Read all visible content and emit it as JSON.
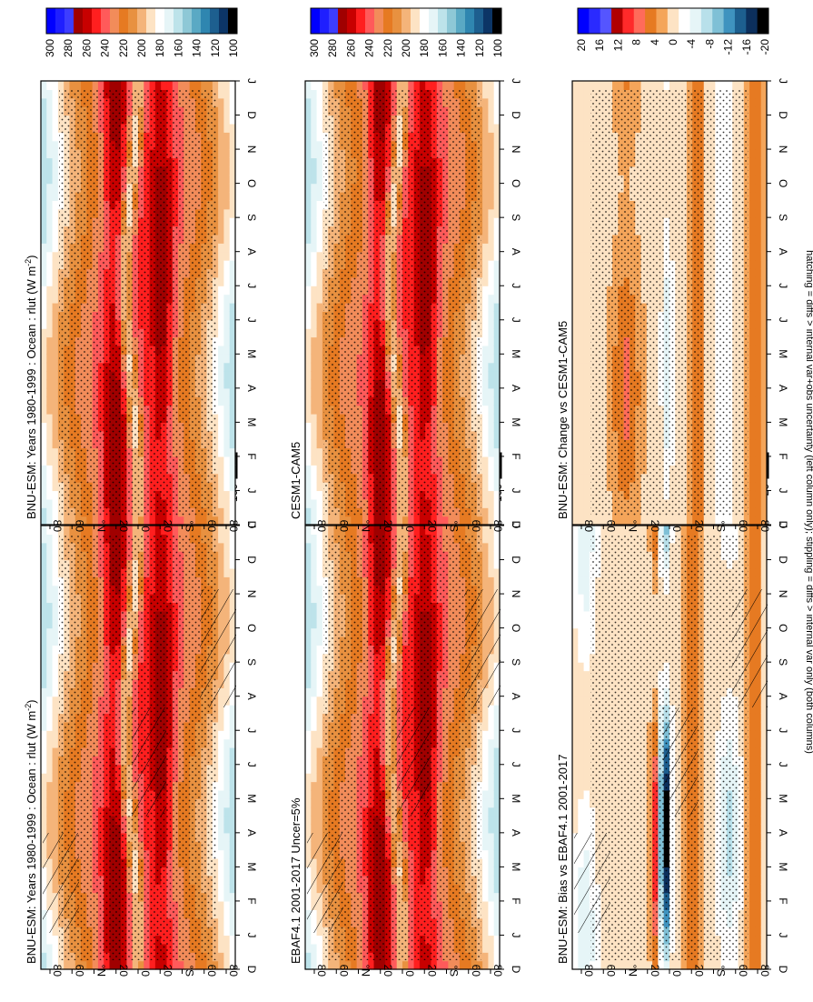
{
  "figure": {
    "caption": "hatching = diffs > internal var+obs uncertainty (left column only); stippling = diffs > internal var only (both columns)"
  },
  "palettes": {
    "abs": [
      "#0000ff",
      "#1f1fff",
      "#3d3dff",
      "#a00000",
      "#c80000",
      "#ff1f1f",
      "#ff5a5a",
      "#f28c5a",
      "#e67a22",
      "#e89140",
      "#f4b47a",
      "#fde3c4",
      "#ffffff",
      "#e6f5f7",
      "#bde3ea",
      "#8ec8d6",
      "#5aa9c4",
      "#2f86b0",
      "#1d5f8f",
      "#0c3566",
      "#000000"
    ],
    "diff": [
      "#0000ff",
      "#2a2aff",
      "#5555ff",
      "#b00000",
      "#ff2a2a",
      "#ff6b5a",
      "#e67a22",
      "#f4a55a",
      "#fde3c4",
      "#ffffff",
      "#e6f5f7",
      "#b8e0ea",
      "#7fc0d6",
      "#3f93bf",
      "#1d5f8f",
      "#0c2f5c",
      "#000000"
    ]
  },
  "chart_data": [
    {
      "type": "heatmap",
      "title": "BNU-ESM: Years 1980-1999 : Ocean : rlut (W m",
      "title_sup": "-2",
      "title_end": ")",
      "x_ticks": [
        "D",
        "J",
        "F",
        "M",
        "A",
        "M",
        "J",
        "J",
        "A",
        "S",
        "O",
        "N",
        "D",
        "J"
      ],
      "y_ticks": [
        "80",
        "60",
        "°N",
        "20",
        "0",
        "20",
        "°S",
        "60",
        "80"
      ],
      "colorbar_ticks": [
        "300",
        "280",
        "260",
        "240",
        "220",
        "200",
        "180",
        "160",
        "140",
        "120",
        "100"
      ],
      "palette": "abs",
      "field": "model",
      "hatching": true,
      "stippling": true
    },
    {
      "type": "heatmap",
      "title": "BNU-ESM: Years 1980-1999 : Ocean : rlut (W m",
      "title_sup": "-2",
      "title_end": ")",
      "x_ticks": [
        "D",
        "J",
        "F",
        "M",
        "A",
        "M",
        "J",
        "J",
        "A",
        "S",
        "O",
        "N",
        "D",
        "J"
      ],
      "y_ticks": [
        "80",
        "60",
        "°N",
        "20",
        "0",
        "20",
        "°S",
        "60",
        "80"
      ],
      "colorbar_ticks": [
        "300",
        "280",
        "260",
        "240",
        "220",
        "200",
        "180",
        "160",
        "140",
        "120",
        "100"
      ],
      "palette": "abs",
      "field": "model",
      "hatching": false,
      "stippling": true
    },
    {
      "type": "heatmap",
      "title": "EBAF4.1 2001-2017 Uncer=5%",
      "x_ticks": [
        "D",
        "J",
        "F",
        "M",
        "A",
        "M",
        "J",
        "J",
        "A",
        "S",
        "O",
        "N",
        "D",
        "J"
      ],
      "y_ticks": [
        "80",
        "60",
        "°N",
        "20",
        "0",
        "20",
        "°S",
        "60",
        "80"
      ],
      "colorbar_ticks": [
        "300",
        "280",
        "260",
        "240",
        "220",
        "200",
        "180",
        "160",
        "140",
        "120",
        "100"
      ],
      "palette": "abs",
      "field": "obs",
      "hatching": true,
      "stippling": true
    },
    {
      "type": "heatmap",
      "title": "CESM1-CAM5",
      "x_ticks": [
        "D",
        "J",
        "F",
        "M",
        "A",
        "M",
        "J",
        "J",
        "A",
        "S",
        "O",
        "N",
        "D",
        "J"
      ],
      "y_ticks": [
        "80",
        "60",
        "°N",
        "20",
        "0",
        "20",
        "°S",
        "60",
        "80"
      ],
      "colorbar_ticks": [
        "300",
        "280",
        "260",
        "240",
        "220",
        "200",
        "180",
        "160",
        "140",
        "120",
        "100"
      ],
      "palette": "abs",
      "field": "cesm",
      "hatching": false,
      "stippling": true
    },
    {
      "type": "heatmap",
      "title": "BNU-ESM: Bias vs EBAF4.1 2001-2017",
      "x_ticks": [
        "D",
        "J",
        "F",
        "M",
        "A",
        "M",
        "J",
        "J",
        "A",
        "S",
        "O",
        "N",
        "D",
        "J"
      ],
      "y_ticks": [
        "80",
        "60",
        "°N",
        "20",
        "0",
        "20",
        "°S",
        "60",
        "80"
      ],
      "colorbar_ticks": [
        "20",
        "16",
        "12",
        "8",
        "4",
        "0",
        "-4",
        "-8",
        "-12",
        "-16",
        "-20"
      ],
      "palette": "diff",
      "field": "bias",
      "hatching": true,
      "stippling": true
    },
    {
      "type": "heatmap",
      "title": "BNU-ESM: Change vs CESM1-CAM5",
      "x_ticks": [
        "D",
        "J",
        "F",
        "M",
        "A",
        "M",
        "J",
        "J",
        "A",
        "S",
        "O",
        "N",
        "D",
        "J"
      ],
      "y_ticks": [
        "80",
        "60",
        "°N",
        "20",
        "0",
        "20",
        "°S",
        "60",
        "80"
      ],
      "colorbar_ticks": [
        "20",
        "16",
        "12",
        "8",
        "4",
        "0",
        "-4",
        "-8",
        "-12",
        "-16",
        "-20"
      ],
      "palette": "diff",
      "field": "change",
      "hatching": false,
      "stippling": true
    }
  ]
}
